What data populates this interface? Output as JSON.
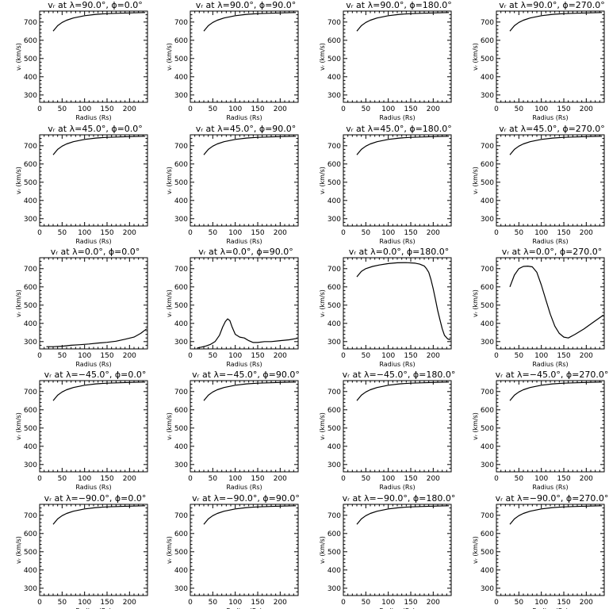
{
  "figure": {
    "background": "#ffffff",
    "ink": "#000000"
  },
  "chart_data": [
    {
      "type": "line",
      "title": "vᵣ at λ=90.0°, ϕ=0.0°",
      "xlabel": "Radius (Rs)",
      "ylabel": "vᵣ (km/s)",
      "xlim": [
        0,
        240
      ],
      "ylim": [
        260,
        760
      ],
      "xticks": [
        0,
        50,
        100,
        150,
        200
      ],
      "yticks": [
        300,
        400,
        500,
        600,
        700
      ],
      "series": [
        {
          "x": [
            30,
            40,
            50,
            60,
            75,
            100,
            125,
            150,
            200,
            235
          ],
          "y": [
            650,
            680,
            698,
            710,
            722,
            735,
            742,
            746,
            750,
            752
          ]
        }
      ]
    },
    {
      "type": "line",
      "title": "vᵣ at λ=90.0°, ϕ=90.0°",
      "xlabel": "Radius (Rs)",
      "ylabel": "vᵣ (km/s)",
      "xlim": [
        0,
        240
      ],
      "ylim": [
        260,
        760
      ],
      "xticks": [
        0,
        50,
        100,
        150,
        200
      ],
      "yticks": [
        300,
        400,
        500,
        600,
        700
      ],
      "series": [
        {
          "x": [
            30,
            40,
            50,
            60,
            75,
            100,
            125,
            150,
            200,
            235
          ],
          "y": [
            650,
            680,
            698,
            710,
            722,
            735,
            742,
            746,
            750,
            752
          ]
        }
      ]
    },
    {
      "type": "line",
      "title": "vᵣ at λ=90.0°, ϕ=180.0°",
      "xlabel": "Radius (Rs)",
      "ylabel": "vᵣ (km/s)",
      "xlim": [
        0,
        240
      ],
      "ylim": [
        260,
        760
      ],
      "xticks": [
        0,
        50,
        100,
        150,
        200
      ],
      "yticks": [
        300,
        400,
        500,
        600,
        700
      ],
      "series": [
        {
          "x": [
            30,
            40,
            50,
            60,
            75,
            100,
            125,
            150,
            200,
            235
          ],
          "y": [
            650,
            680,
            698,
            710,
            722,
            735,
            742,
            746,
            750,
            752
          ]
        }
      ]
    },
    {
      "type": "line",
      "title": "vᵣ at λ=90.0°, ϕ=270.0°",
      "xlabel": "Radius (Rs)",
      "ylabel": "vᵣ (km/s)",
      "xlim": [
        0,
        240
      ],
      "ylim": [
        260,
        760
      ],
      "xticks": [
        0,
        50,
        100,
        150,
        200
      ],
      "yticks": [
        300,
        400,
        500,
        600,
        700
      ],
      "series": [
        {
          "x": [
            30,
            40,
            50,
            60,
            75,
            100,
            125,
            150,
            200,
            235
          ],
          "y": [
            650,
            680,
            698,
            710,
            722,
            735,
            742,
            746,
            750,
            752
          ]
        }
      ]
    },
    {
      "type": "line",
      "title": "vᵣ at λ=45.0°, ϕ=0.0°",
      "xlabel": "Radius (Rs)",
      "ylabel": "vᵣ (km/s)",
      "xlim": [
        0,
        240
      ],
      "ylim": [
        260,
        760
      ],
      "xticks": [
        0,
        50,
        100,
        150,
        200
      ],
      "yticks": [
        300,
        400,
        500,
        600,
        700
      ],
      "series": [
        {
          "x": [
            30,
            40,
            50,
            60,
            75,
            100,
            125,
            150,
            200,
            235
          ],
          "y": [
            650,
            680,
            698,
            710,
            722,
            735,
            742,
            746,
            750,
            752
          ]
        }
      ]
    },
    {
      "type": "line",
      "title": "vᵣ at λ=45.0°, ϕ=90.0°",
      "xlabel": "Radius (Rs)",
      "ylabel": "vᵣ (km/s)",
      "xlim": [
        0,
        240
      ],
      "ylim": [
        260,
        760
      ],
      "xticks": [
        0,
        50,
        100,
        150,
        200
      ],
      "yticks": [
        300,
        400,
        500,
        600,
        700
      ],
      "series": [
        {
          "x": [
            30,
            40,
            50,
            60,
            75,
            100,
            125,
            150,
            200,
            235
          ],
          "y": [
            650,
            680,
            698,
            710,
            722,
            735,
            742,
            746,
            750,
            752
          ]
        }
      ]
    },
    {
      "type": "line",
      "title": "vᵣ at λ=45.0°, ϕ=180.0°",
      "xlabel": "Radius (Rs)",
      "ylabel": "vᵣ (km/s)",
      "xlim": [
        0,
        240
      ],
      "ylim": [
        260,
        760
      ],
      "xticks": [
        0,
        50,
        100,
        150,
        200
      ],
      "yticks": [
        300,
        400,
        500,
        600,
        700
      ],
      "series": [
        {
          "x": [
            30,
            40,
            50,
            60,
            75,
            100,
            125,
            150,
            200,
            235
          ],
          "y": [
            650,
            680,
            698,
            710,
            722,
            735,
            742,
            746,
            750,
            752
          ]
        }
      ]
    },
    {
      "type": "line",
      "title": "vᵣ at λ=45.0°, ϕ=270.0°",
      "xlabel": "Radius (Rs)",
      "ylabel": "vᵣ (km/s)",
      "xlim": [
        0,
        240
      ],
      "ylim": [
        260,
        760
      ],
      "xticks": [
        0,
        50,
        100,
        150,
        200
      ],
      "yticks": [
        300,
        400,
        500,
        600,
        700
      ],
      "series": [
        {
          "x": [
            30,
            40,
            50,
            60,
            75,
            100,
            125,
            150,
            200,
            235
          ],
          "y": [
            650,
            680,
            698,
            710,
            722,
            735,
            742,
            746,
            750,
            752
          ]
        }
      ]
    },
    {
      "type": "line",
      "title": "vᵣ at λ=0.0°, ϕ=0.0°",
      "xlabel": "Radius (Rs)",
      "ylabel": "vᵣ (km/s)",
      "xlim": [
        0,
        240
      ],
      "ylim": [
        260,
        760
      ],
      "xticks": [
        0,
        50,
        100,
        150,
        200
      ],
      "yticks": [
        300,
        400,
        500,
        600,
        700
      ],
      "series": [
        {
          "x": [
            15,
            30,
            50,
            70,
            90,
            110,
            130,
            150,
            170,
            190,
            210,
            225,
            238
          ],
          "y": [
            272,
            272,
            275,
            280,
            283,
            287,
            292,
            296,
            302,
            313,
            325,
            345,
            370
          ]
        }
      ]
    },
    {
      "type": "line",
      "title": "vᵣ at λ=0.0°, ϕ=90.0°",
      "xlabel": "Radius (Rs)",
      "ylabel": "vᵣ (km/s)",
      "xlim": [
        0,
        240
      ],
      "ylim": [
        260,
        760
      ],
      "xticks": [
        0,
        50,
        100,
        150,
        200
      ],
      "yticks": [
        300,
        400,
        500,
        600,
        700
      ],
      "series": [
        {
          "x": [
            15,
            25,
            35,
            45,
            55,
            65,
            72,
            78,
            83,
            88,
            93,
            100,
            110,
            120,
            130,
            140,
            150,
            165,
            180,
            200,
            220,
            238
          ],
          "y": [
            265,
            270,
            276,
            285,
            300,
            335,
            380,
            410,
            425,
            415,
            380,
            340,
            325,
            320,
            305,
            295,
            295,
            300,
            300,
            305,
            310,
            318
          ]
        }
      ]
    },
    {
      "type": "line",
      "title": "vᵣ at λ=0.0°, ϕ=180.0°",
      "xlabel": "Radius (Rs)",
      "ylabel": "vᵣ (km/s)",
      "xlim": [
        0,
        240
      ],
      "ylim": [
        260,
        760
      ],
      "xticks": [
        0,
        50,
        100,
        150,
        200
      ],
      "yticks": [
        300,
        400,
        500,
        600,
        700
      ],
      "series": [
        {
          "x": [
            30,
            40,
            50,
            65,
            80,
            100,
            120,
            140,
            160,
            170,
            180,
            185,
            190,
            195,
            200,
            205,
            210,
            215,
            220,
            225,
            232,
            238
          ],
          "y": [
            655,
            685,
            700,
            712,
            720,
            728,
            732,
            733,
            730,
            725,
            715,
            700,
            680,
            640,
            590,
            530,
            470,
            420,
            370,
            335,
            315,
            310
          ]
        }
      ]
    },
    {
      "type": "line",
      "title": "vᵣ at λ=0.0°, ϕ=270.0°",
      "xlabel": "Radius (Rs)",
      "ylabel": "vᵣ (km/s)",
      "xlim": [
        0,
        240
      ],
      "ylim": [
        260,
        760
      ],
      "xticks": [
        0,
        50,
        100,
        150,
        200
      ],
      "yticks": [
        300,
        400,
        500,
        600,
        700
      ],
      "series": [
        {
          "x": [
            30,
            40,
            50,
            60,
            70,
            80,
            90,
            100,
            110,
            120,
            130,
            140,
            150,
            160,
            175,
            195,
            215,
            238
          ],
          "y": [
            600,
            665,
            700,
            712,
            714,
            710,
            680,
            610,
            530,
            450,
            385,
            345,
            325,
            320,
            340,
            370,
            405,
            445
          ]
        }
      ]
    },
    {
      "type": "line",
      "title": "vᵣ at λ=−45.0°, ϕ=0.0°",
      "xlabel": "Radius (Rs)",
      "ylabel": "vᵣ (km/s)",
      "xlim": [
        0,
        240
      ],
      "ylim": [
        260,
        760
      ],
      "xticks": [
        0,
        50,
        100,
        150,
        200
      ],
      "yticks": [
        300,
        400,
        500,
        600,
        700
      ],
      "series": [
        {
          "x": [
            30,
            40,
            50,
            60,
            75,
            100,
            125,
            150,
            200,
            235
          ],
          "y": [
            650,
            680,
            698,
            710,
            722,
            735,
            742,
            746,
            750,
            752
          ]
        }
      ]
    },
    {
      "type": "line",
      "title": "vᵣ at λ=−45.0°, ϕ=90.0°",
      "xlabel": "Radius (Rs)",
      "ylabel": "vᵣ (km/s)",
      "xlim": [
        0,
        240
      ],
      "ylim": [
        260,
        760
      ],
      "xticks": [
        0,
        50,
        100,
        150,
        200
      ],
      "yticks": [
        300,
        400,
        500,
        600,
        700
      ],
      "series": [
        {
          "x": [
            30,
            40,
            50,
            60,
            75,
            100,
            125,
            150,
            200,
            235
          ],
          "y": [
            650,
            680,
            698,
            710,
            722,
            735,
            742,
            746,
            750,
            752
          ]
        }
      ]
    },
    {
      "type": "line",
      "title": "vᵣ at λ=−45.0°, ϕ=180.0°",
      "xlabel": "Radius (Rs)",
      "ylabel": "vᵣ (km/s)",
      "xlim": [
        0,
        240
      ],
      "ylim": [
        260,
        760
      ],
      "xticks": [
        0,
        50,
        100,
        150,
        200
      ],
      "yticks": [
        300,
        400,
        500,
        600,
        700
      ],
      "series": [
        {
          "x": [
            30,
            40,
            50,
            60,
            75,
            100,
            125,
            150,
            200,
            235
          ],
          "y": [
            650,
            680,
            698,
            710,
            722,
            735,
            742,
            746,
            750,
            752
          ]
        }
      ]
    },
    {
      "type": "line",
      "title": "vᵣ at λ=−45.0°, ϕ=270.0°",
      "xlabel": "Radius (Rs)",
      "ylabel": "vᵣ (km/s)",
      "xlim": [
        0,
        240
      ],
      "ylim": [
        260,
        760
      ],
      "xticks": [
        0,
        50,
        100,
        150,
        200
      ],
      "yticks": [
        300,
        400,
        500,
        600,
        700
      ],
      "series": [
        {
          "x": [
            30,
            40,
            50,
            60,
            75,
            100,
            125,
            150,
            200,
            235
          ],
          "y": [
            650,
            680,
            698,
            710,
            722,
            735,
            742,
            746,
            750,
            752
          ]
        }
      ]
    },
    {
      "type": "line",
      "title": "vᵣ at λ=−90.0°, ϕ=0.0°",
      "xlabel": "Radius (Rs)",
      "ylabel": "vᵣ (km/s)",
      "xlim": [
        0,
        240
      ],
      "ylim": [
        260,
        760
      ],
      "xticks": [
        0,
        50,
        100,
        150,
        200
      ],
      "yticks": [
        300,
        400,
        500,
        600,
        700
      ],
      "series": [
        {
          "x": [
            30,
            40,
            50,
            60,
            75,
            100,
            125,
            150,
            200,
            235
          ],
          "y": [
            650,
            680,
            698,
            710,
            722,
            735,
            742,
            746,
            750,
            752
          ]
        }
      ]
    },
    {
      "type": "line",
      "title": "vᵣ at λ=−90.0°, ϕ=90.0°",
      "xlabel": "Radius (Rs)",
      "ylabel": "vᵣ (km/s)",
      "xlim": [
        0,
        240
      ],
      "ylim": [
        260,
        760
      ],
      "xticks": [
        0,
        50,
        100,
        150,
        200
      ],
      "yticks": [
        300,
        400,
        500,
        600,
        700
      ],
      "series": [
        {
          "x": [
            30,
            40,
            50,
            60,
            75,
            100,
            125,
            150,
            200,
            235
          ],
          "y": [
            650,
            680,
            698,
            710,
            722,
            735,
            742,
            746,
            750,
            752
          ]
        }
      ]
    },
    {
      "type": "line",
      "title": "vᵣ at λ=−90.0°, ϕ=180.0°",
      "xlabel": "Radius (Rs)",
      "ylabel": "vᵣ (km/s)",
      "xlim": [
        0,
        240
      ],
      "ylim": [
        260,
        760
      ],
      "xticks": [
        0,
        50,
        100,
        150,
        200
      ],
      "yticks": [
        300,
        400,
        500,
        600,
        700
      ],
      "series": [
        {
          "x": [
            30,
            40,
            50,
            60,
            75,
            100,
            125,
            150,
            200,
            235
          ],
          "y": [
            650,
            680,
            698,
            710,
            722,
            735,
            742,
            746,
            750,
            752
          ]
        }
      ]
    },
    {
      "type": "line",
      "title": "vᵣ at λ=−90.0°, ϕ=270.0°",
      "xlabel": "Radius (Rs)",
      "ylabel": "vᵣ (km/s)",
      "xlim": [
        0,
        240
      ],
      "ylim": [
        260,
        760
      ],
      "xticks": [
        0,
        50,
        100,
        150,
        200
      ],
      "yticks": [
        300,
        400,
        500,
        600,
        700
      ],
      "series": [
        {
          "x": [
            30,
            40,
            50,
            60,
            75,
            100,
            125,
            150,
            200,
            235
          ],
          "y": [
            650,
            680,
            698,
            710,
            722,
            735,
            742,
            746,
            750,
            752
          ]
        }
      ]
    }
  ]
}
